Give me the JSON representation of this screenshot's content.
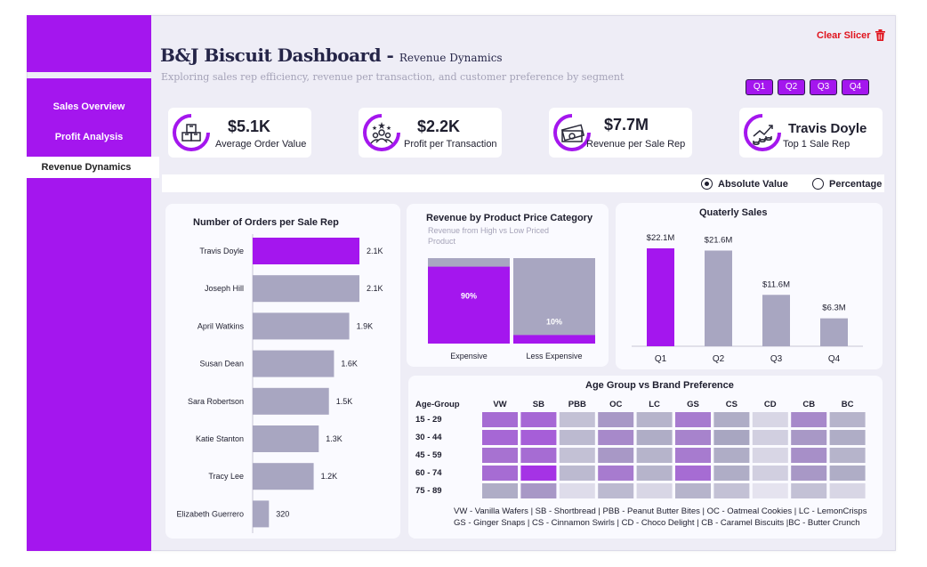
{
  "colors": {
    "accent": "#a416ee",
    "gray": "#a8a6c1",
    "bg": "#eeedf6",
    "red": "#e0141e"
  },
  "nav": [
    {
      "label": "Sales Overview",
      "active": false
    },
    {
      "label": "Profit Analysis",
      "active": false
    },
    {
      "label": "Revenue Dynamics",
      "active": true
    }
  ],
  "header": {
    "title": "B&J Biscuit Dashboard - ",
    "title_suffix": "Revenue Dynamics",
    "subtitle": "Exploring sales rep efficiency, revenue per transaction, and customer preference by segment",
    "clear_slicer": "Clear Slicer"
  },
  "quarters": [
    "Q1",
    "Q2",
    "Q3",
    "Q4"
  ],
  "kpis": [
    {
      "value": "$5.1K",
      "label": "Average Order Value",
      "icon": "boxes-icon"
    },
    {
      "value": "$2.2K",
      "label": "Profit per Transaction",
      "icon": "team-star-icon"
    },
    {
      "value": "$7.7M",
      "label": "Revenue per Sale Rep",
      "icon": "money-icon"
    },
    {
      "value": "Travis Doyle",
      "label": "Top 1 Sale Rep",
      "icon": "growth-coins-icon"
    }
  ],
  "toggle": {
    "option_a": "Absolute Value",
    "option_b": "Percentage",
    "selected": "Absolute Value"
  },
  "orders_chart": {
    "title": "Number of Orders per Sale Rep",
    "chart_data": {
      "type": "bar",
      "orientation": "horizontal",
      "categories": [
        "Travis Doyle",
        "Joseph Hill",
        "April Watkins",
        "Susan Dean",
        "Sara Robertson",
        "Katie Stanton",
        "Tracy Lee",
        "Elizabeth Guerrero"
      ],
      "values": [
        2100,
        2100,
        1900,
        1600,
        1500,
        1300,
        1200,
        320
      ],
      "labels": [
        "2.1K",
        "2.1K",
        "1.9K",
        "1.6K",
        "1.5K",
        "1.3K",
        "1.2K",
        "320"
      ],
      "highlight": [
        0
      ]
    }
  },
  "price_chart": {
    "title": "Revenue by Product Price Category",
    "subtitle": "Revenue from High vs Low Priced Product",
    "chart_data": {
      "type": "bar",
      "stacked_percent": true,
      "categories": [
        "Expensive",
        "Less Expensive"
      ],
      "values": [
        90,
        10
      ],
      "labels": [
        "90%",
        "10%"
      ]
    }
  },
  "quarterly_chart": {
    "title": "Quaterly Sales",
    "chart_data": {
      "type": "bar",
      "categories": [
        "Q1",
        "Q2",
        "Q3",
        "Q4"
      ],
      "values": [
        22.1,
        21.6,
        11.6,
        6.3
      ],
      "labels": [
        "$22.1M",
        "$21.6M",
        "$11.6M",
        "$6.3M"
      ],
      "unit": "$M",
      "ylim": [
        0,
        25
      ],
      "highlight": [
        0
      ]
    }
  },
  "heatmap": {
    "title": "Age Group vs Brand Preference",
    "row_header": "Age-Group",
    "chart_data": {
      "type": "heatmap",
      "columns": [
        "VW",
        "SB",
        "PBB",
        "OC",
        "LC",
        "GS",
        "CS",
        "CD",
        "CB",
        "BC"
      ],
      "rows": [
        "15 - 29",
        "30 - 44",
        "45 - 59",
        "60 - 74",
        "75 - 89"
      ],
      "values": [
        [
          0.7,
          0.72,
          0.3,
          0.55,
          0.4,
          0.65,
          0.45,
          0.15,
          0.6,
          0.4
        ],
        [
          0.72,
          0.75,
          0.35,
          0.6,
          0.45,
          0.62,
          0.5,
          0.2,
          0.55,
          0.45
        ],
        [
          0.68,
          0.7,
          0.3,
          0.55,
          0.4,
          0.65,
          0.45,
          0.15,
          0.58,
          0.4
        ],
        [
          0.7,
          0.9,
          0.35,
          0.65,
          0.4,
          0.7,
          0.45,
          0.2,
          0.55,
          0.45
        ],
        [
          0.45,
          0.55,
          0.1,
          0.35,
          0.15,
          0.4,
          0.3,
          0.05,
          0.3,
          0.15
        ]
      ]
    },
    "legend_line1": "VW - Vanilla Wafers | SB - Shortbread | PBB - Peanut Butter Bites | OC - Oatmeal Cookies | LC - LemonCrisps",
    "legend_line2": "GS - Ginger Snaps | CS - Cinnamon Swirls | CD - Choco Delight |  CB - Caramel Biscuits |BC - Butter Crunch"
  }
}
